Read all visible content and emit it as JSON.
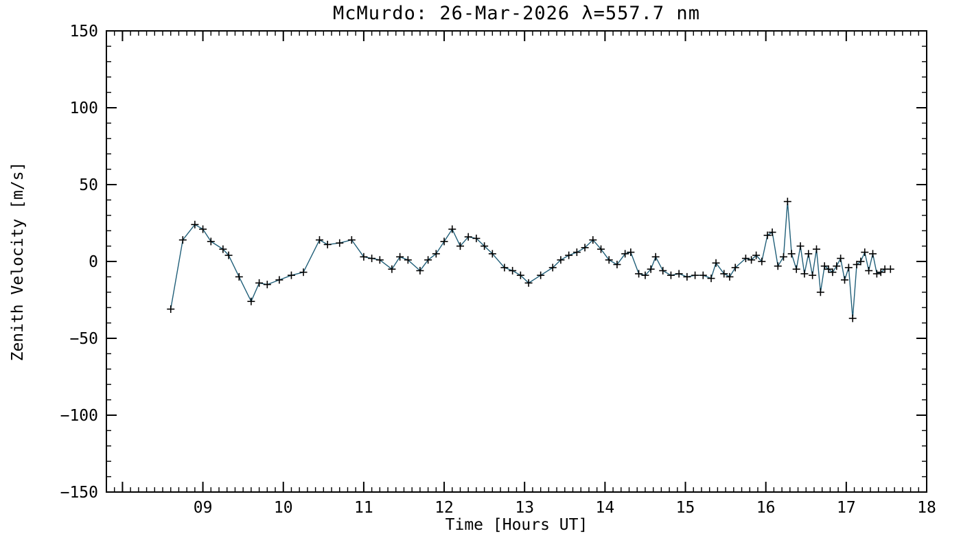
{
  "chart_data": {
    "type": "line",
    "title": "McMurdo: 26-Mar-2026 λ=557.7 nm",
    "xlabel": "Time [Hours UT]",
    "ylabel": "Zenith Velocity [m/s]",
    "xlim": [
      7.8,
      18
    ],
    "ylim": [
      -150,
      150
    ],
    "x_major_ticks": [
      8,
      9,
      10,
      11,
      12,
      13,
      14,
      15,
      16,
      17,
      18
    ],
    "x_tick_labels": [
      {
        "value": 9,
        "label": "09"
      },
      {
        "value": 10,
        "label": "10"
      },
      {
        "value": 11,
        "label": "11"
      },
      {
        "value": 12,
        "label": "12"
      },
      {
        "value": 13,
        "label": "13"
      },
      {
        "value": 14,
        "label": "14"
      },
      {
        "value": 15,
        "label": "15"
      },
      {
        "value": 16,
        "label": "16"
      },
      {
        "value": 17,
        "label": "17"
      },
      {
        "value": 18,
        "label": "18"
      }
    ],
    "x_minor_step": 0.1,
    "y_major_ticks": [
      -150,
      -100,
      -50,
      0,
      50,
      100,
      150
    ],
    "y_tick_labels": [
      "−150",
      "−100",
      "−50",
      "0",
      "50",
      "100",
      "150"
    ],
    "y_minor_step": 10,
    "grid": false,
    "legend": "none",
    "marker": "plus",
    "line_color": "#1f5e78",
    "marker_color": "#000000",
    "axis_color": "#000000",
    "series": [
      {
        "name": "zenith_velocity",
        "points": [
          [
            8.6,
            -31
          ],
          [
            8.75,
            14
          ],
          [
            8.9,
            24
          ],
          [
            9.0,
            21
          ],
          [
            9.1,
            13
          ],
          [
            9.25,
            8
          ],
          [
            9.32,
            4
          ],
          [
            9.45,
            -10
          ],
          [
            9.6,
            -26
          ],
          [
            9.7,
            -14
          ],
          [
            9.8,
            -15
          ],
          [
            9.95,
            -12
          ],
          [
            10.1,
            -9
          ],
          [
            10.25,
            -7
          ],
          [
            10.45,
            14
          ],
          [
            10.55,
            11
          ],
          [
            10.7,
            12
          ],
          [
            10.85,
            14
          ],
          [
            11.0,
            3
          ],
          [
            11.1,
            2
          ],
          [
            11.2,
            1
          ],
          [
            11.35,
            -5
          ],
          [
            11.45,
            3
          ],
          [
            11.55,
            1
          ],
          [
            11.7,
            -6
          ],
          [
            11.8,
            1
          ],
          [
            11.9,
            5
          ],
          [
            12.0,
            13
          ],
          [
            12.1,
            21
          ],
          [
            12.2,
            10
          ],
          [
            12.3,
            16
          ],
          [
            12.4,
            15
          ],
          [
            12.5,
            10
          ],
          [
            12.6,
            5
          ],
          [
            12.75,
            -4
          ],
          [
            12.85,
            -6
          ],
          [
            12.95,
            -9
          ],
          [
            13.05,
            -14
          ],
          [
            13.2,
            -9
          ],
          [
            13.35,
            -4
          ],
          [
            13.45,
            1
          ],
          [
            13.55,
            4
          ],
          [
            13.65,
            6
          ],
          [
            13.75,
            9
          ],
          [
            13.85,
            14
          ],
          [
            13.95,
            8
          ],
          [
            14.05,
            1
          ],
          [
            14.15,
            -2
          ],
          [
            14.25,
            5
          ],
          [
            14.32,
            6
          ],
          [
            14.42,
            -8
          ],
          [
            14.5,
            -9
          ],
          [
            14.57,
            -5
          ],
          [
            14.63,
            3
          ],
          [
            14.72,
            -6
          ],
          [
            14.82,
            -9
          ],
          [
            14.92,
            -8
          ],
          [
            15.02,
            -10
          ],
          [
            15.12,
            -9
          ],
          [
            15.22,
            -9
          ],
          [
            15.32,
            -11
          ],
          [
            15.38,
            -1
          ],
          [
            15.48,
            -8
          ],
          [
            15.55,
            -10
          ],
          [
            15.62,
            -4
          ],
          [
            15.75,
            2
          ],
          [
            15.82,
            1
          ],
          [
            15.88,
            4
          ],
          [
            15.95,
            0
          ],
          [
            16.02,
            17
          ],
          [
            16.08,
            19
          ],
          [
            16.15,
            -3
          ],
          [
            16.22,
            3
          ],
          [
            16.27,
            39
          ],
          [
            16.32,
            5
          ],
          [
            16.38,
            -5
          ],
          [
            16.43,
            10
          ],
          [
            16.48,
            -8
          ],
          [
            16.53,
            5
          ],
          [
            16.58,
            -9
          ],
          [
            16.63,
            8
          ],
          [
            16.68,
            -20
          ],
          [
            16.73,
            -3
          ],
          [
            16.78,
            -5
          ],
          [
            16.83,
            -7
          ],
          [
            16.88,
            -3
          ],
          [
            16.93,
            2
          ],
          [
            16.98,
            -12
          ],
          [
            17.03,
            -4
          ],
          [
            17.08,
            -37
          ],
          [
            17.13,
            -2
          ],
          [
            17.18,
            0
          ],
          [
            17.23,
            6
          ],
          [
            17.28,
            -6
          ],
          [
            17.33,
            5
          ],
          [
            17.38,
            -8
          ],
          [
            17.43,
            -7
          ],
          [
            17.48,
            -5
          ],
          [
            17.55,
            -5
          ]
        ]
      }
    ]
  }
}
